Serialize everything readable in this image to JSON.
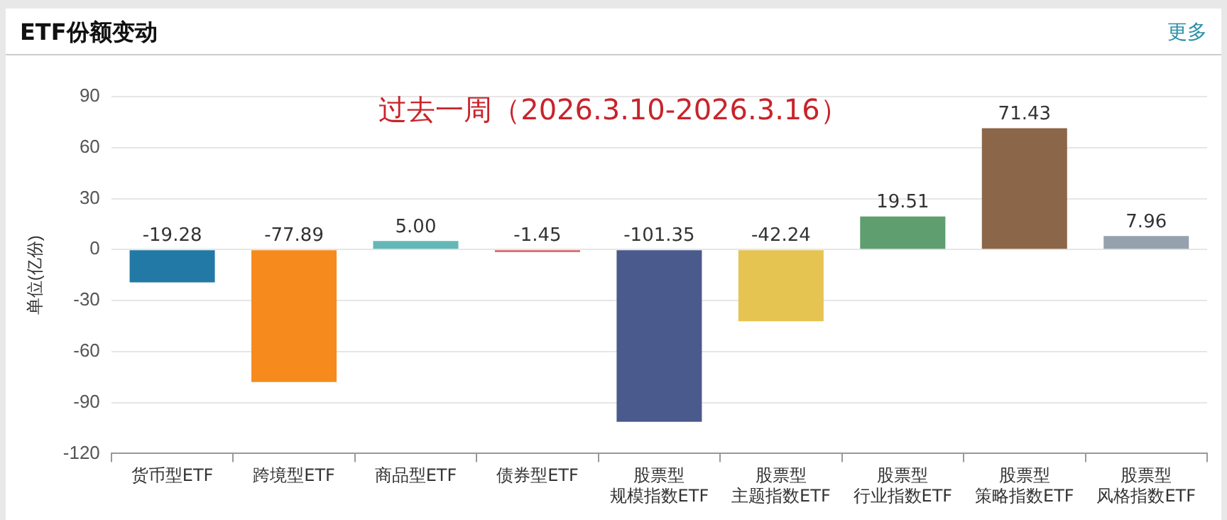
{
  "chart_data": {
    "type": "bar",
    "title": "ETF份额变动",
    "ylabel": "单位(亿份)",
    "annotations": [
      "过去一周（2026.3.10-2026.3.16）",
      "更多"
    ],
    "categories": [
      "货币型ETF",
      "跨境型ETF",
      "商品型ETF",
      "债券型ETF",
      "股票型规模指数ETF",
      "股票型主题指数ETF",
      "股票型行业指数ETF",
      "股票型策略指数ETF",
      "股票型风格指数ETF"
    ],
    "value_labels": [
      "-19.28",
      "-77.89",
      "5.00",
      "-1.45",
      "-101.35",
      "-42.24",
      "19.51",
      "71.43",
      "7.96"
    ],
    "values": [
      -19.28,
      -77.89,
      5.0,
      -1.45,
      -101.35,
      -42.24,
      19.51,
      71.43,
      7.96
    ],
    "colors": [
      "#2279a6",
      "#f78a1d",
      "#63b8b7",
      "#d95c63",
      "#4b5a8c",
      "#e6c452",
      "#5f9e6f",
      "#8c6649",
      "#95a2ae"
    ],
    "ylim": [
      -120,
      90
    ],
    "yticks": [
      -120,
      -90,
      -60,
      -30,
      0,
      30,
      60,
      90
    ],
    "grid": "y",
    "legend": false
  }
}
